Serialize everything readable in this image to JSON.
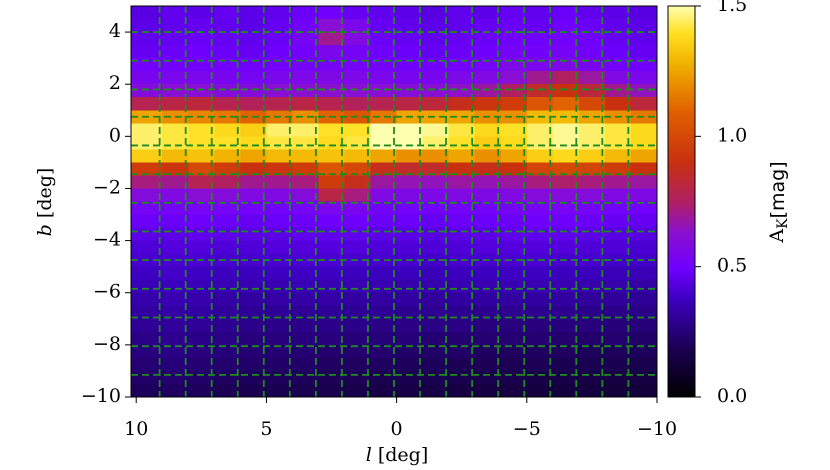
{
  "chart_data": {
    "type": "heatmap",
    "xlabel_var": "l",
    "xlabel_unit": "[deg]",
    "ylabel_var": "b",
    "ylabel_unit": "[deg]",
    "xlim": [
      10.2,
      -10
    ],
    "ylim": [
      -10,
      5
    ],
    "xticks": [
      10,
      5,
      0,
      {
        "value": -5,
        "label": "−5"
      },
      {
        "value": -10,
        "label": "−10"
      }
    ],
    "yticks": [
      4,
      2,
      0,
      {
        "value": -2,
        "label": "−2"
      },
      {
        "value": -4,
        "label": "−4"
      },
      {
        "value": -6,
        "label": "−6"
      },
      {
        "value": -8,
        "label": "−8"
      },
      {
        "value": -10,
        "label": "−10"
      }
    ],
    "colormap": "fire",
    "colorbar": {
      "label_main": "A",
      "label_sub": "K",
      "label_unit": "[mag]",
      "lim": [
        0,
        1.5
      ],
      "ticks": [
        {
          "value": 0,
          "label": "0.0"
        },
        0.5,
        {
          "value": 1,
          "label": "1.0"
        },
        1.5
      ]
    },
    "tile_grid": {
      "color": "#1f8a1f",
      "l": [
        9.1,
        8.1,
        7.1,
        6.1,
        5.1,
        4.1,
        3.1,
        2.1,
        1.1,
        0.1,
        -0.9,
        -1.9,
        -2.9,
        -3.9,
        -4.9,
        -5.9,
        -6.9,
        -7.9,
        -8.9
      ],
      "b": [
        4.0,
        2.9,
        1.8,
        0.75,
        -0.35,
        -1.45,
        -2.55,
        -3.65,
        -4.75,
        -5.85,
        -6.95,
        -8.05,
        -9.15
      ]
    },
    "x": [
      9.5,
      8.5,
      7.5,
      6.5,
      5.5,
      4.5,
      3.5,
      2.5,
      1.5,
      0.5,
      -0.5,
      -1.5,
      -2.5,
      -3.5,
      -4.5,
      -5.5,
      -6.5,
      -7.5,
      -8.5,
      -9.5
    ],
    "y": [
      4.75,
      4.25,
      3.75,
      3.25,
      2.75,
      2.25,
      1.75,
      1.25,
      0.75,
      0.25,
      -0.25,
      -0.75,
      -1.25,
      -1.75,
      -2.25,
      -2.75,
      -3.25,
      -3.75,
      -4.25,
      -4.75,
      -5.25,
      -5.75,
      -6.25,
      -6.75,
      -7.25,
      -7.75,
      -8.25,
      -8.75,
      -9.25,
      -9.75
    ],
    "values": [
      [
        0.44,
        0.46,
        0.45,
        0.47,
        0.45,
        0.46,
        0.48,
        0.5,
        0.47,
        0.46,
        0.45,
        0.44,
        0.46,
        0.45,
        0.47,
        0.46,
        0.48,
        0.46,
        0.45,
        0.44
      ],
      [
        0.45,
        0.46,
        0.47,
        0.46,
        0.45,
        0.47,
        0.5,
        0.62,
        0.55,
        0.47,
        0.46,
        0.45,
        0.46,
        0.47,
        0.48,
        0.47,
        0.49,
        0.48,
        0.46,
        0.45
      ],
      [
        0.46,
        0.47,
        0.48,
        0.47,
        0.46,
        0.48,
        0.52,
        0.7,
        0.58,
        0.48,
        0.47,
        0.46,
        0.47,
        0.48,
        0.5,
        0.49,
        0.5,
        0.49,
        0.47,
        0.46
      ],
      [
        0.47,
        0.48,
        0.49,
        0.48,
        0.47,
        0.49,
        0.5,
        0.55,
        0.52,
        0.49,
        0.48,
        0.47,
        0.48,
        0.49,
        0.52,
        0.51,
        0.52,
        0.5,
        0.48,
        0.47
      ],
      [
        0.5,
        0.5,
        0.51,
        0.5,
        0.49,
        0.51,
        0.52,
        0.53,
        0.52,
        0.51,
        0.5,
        0.5,
        0.51,
        0.52,
        0.56,
        0.55,
        0.57,
        0.54,
        0.51,
        0.5
      ],
      [
        0.54,
        0.55,
        0.55,
        0.54,
        0.53,
        0.55,
        0.56,
        0.57,
        0.56,
        0.55,
        0.54,
        0.54,
        0.56,
        0.58,
        0.62,
        0.7,
        0.75,
        0.68,
        0.58,
        0.55
      ],
      [
        0.6,
        0.62,
        0.62,
        0.6,
        0.6,
        0.62,
        0.63,
        0.63,
        0.62,
        0.62,
        0.61,
        0.62,
        0.64,
        0.68,
        0.75,
        0.85,
        0.9,
        0.82,
        0.7,
        0.65
      ],
      [
        0.78,
        0.8,
        0.82,
        0.78,
        0.76,
        0.78,
        0.8,
        0.78,
        0.76,
        0.78,
        0.8,
        0.82,
        0.88,
        0.92,
        0.95,
        1.05,
        1.1,
        1.0,
        0.9,
        0.82
      ],
      [
        1.25,
        1.2,
        1.18,
        1.15,
        1.1,
        1.15,
        1.2,
        1.1,
        1.05,
        1.15,
        1.25,
        1.25,
        1.25,
        1.2,
        1.2,
        1.3,
        1.3,
        1.25,
        1.2,
        1.15
      ],
      [
        1.45,
        1.42,
        1.4,
        1.38,
        1.35,
        1.45,
        1.45,
        1.4,
        1.4,
        1.5,
        1.5,
        1.48,
        1.42,
        1.38,
        1.4,
        1.45,
        1.48,
        1.45,
        1.42,
        1.38
      ],
      [
        1.45,
        1.42,
        1.4,
        1.4,
        1.38,
        1.42,
        1.42,
        1.38,
        1.42,
        1.5,
        1.5,
        1.45,
        1.4,
        1.35,
        1.38,
        1.45,
        1.48,
        1.45,
        1.42,
        1.38
      ],
      [
        1.35,
        1.3,
        1.32,
        1.28,
        1.25,
        1.3,
        1.3,
        1.32,
        1.3,
        1.25,
        1.2,
        1.2,
        1.25,
        1.2,
        1.25,
        1.35,
        1.38,
        1.35,
        1.3,
        1.25
      ],
      [
        0.95,
        0.92,
        1.0,
        0.95,
        0.9,
        0.92,
        0.95,
        1.05,
        1.0,
        0.88,
        0.85,
        0.85,
        0.9,
        0.88,
        0.9,
        0.98,
        1.0,
        0.98,
        0.95,
        0.9
      ],
      [
        0.72,
        0.7,
        0.78,
        0.75,
        0.7,
        0.7,
        0.72,
        0.95,
        0.88,
        0.68,
        0.66,
        0.65,
        0.68,
        0.66,
        0.68,
        0.72,
        0.74,
        0.72,
        0.7,
        0.68
      ],
      [
        0.6,
        0.58,
        0.62,
        0.6,
        0.58,
        0.58,
        0.6,
        0.8,
        0.72,
        0.58,
        0.57,
        0.56,
        0.58,
        0.57,
        0.58,
        0.6,
        0.6,
        0.6,
        0.58,
        0.57
      ],
      [
        0.52,
        0.52,
        0.53,
        0.52,
        0.51,
        0.51,
        0.52,
        0.55,
        0.54,
        0.51,
        0.51,
        0.5,
        0.51,
        0.51,
        0.52,
        0.52,
        0.53,
        0.52,
        0.51,
        0.5
      ],
      [
        0.48,
        0.48,
        0.49,
        0.48,
        0.47,
        0.48,
        0.48,
        0.49,
        0.49,
        0.48,
        0.48,
        0.47,
        0.48,
        0.48,
        0.48,
        0.49,
        0.49,
        0.48,
        0.47,
        0.47
      ],
      [
        0.45,
        0.45,
        0.46,
        0.45,
        0.45,
        0.45,
        0.46,
        0.46,
        0.46,
        0.45,
        0.45,
        0.44,
        0.45,
        0.45,
        0.46,
        0.46,
        0.46,
        0.45,
        0.44,
        0.44
      ],
      [
        0.42,
        0.43,
        0.43,
        0.42,
        0.42,
        0.43,
        0.43,
        0.43,
        0.43,
        0.42,
        0.42,
        0.42,
        0.42,
        0.43,
        0.43,
        0.43,
        0.43,
        0.42,
        0.42,
        0.41
      ],
      [
        0.4,
        0.41,
        0.41,
        0.4,
        0.4,
        0.4,
        0.41,
        0.41,
        0.4,
        0.4,
        0.4,
        0.39,
        0.4,
        0.4,
        0.41,
        0.41,
        0.4,
        0.4,
        0.39,
        0.39
      ],
      [
        0.38,
        0.39,
        0.38,
        0.37,
        0.37,
        0.38,
        0.38,
        0.38,
        0.37,
        0.37,
        0.37,
        0.36,
        0.37,
        0.37,
        0.38,
        0.38,
        0.37,
        0.37,
        0.36,
        0.36
      ],
      [
        0.36,
        0.37,
        0.36,
        0.35,
        0.35,
        0.35,
        0.36,
        0.35,
        0.35,
        0.35,
        0.34,
        0.34,
        0.35,
        0.35,
        0.35,
        0.35,
        0.35,
        0.34,
        0.34,
        0.33
      ],
      [
        0.34,
        0.35,
        0.34,
        0.33,
        0.32,
        0.33,
        0.33,
        0.33,
        0.32,
        0.32,
        0.32,
        0.31,
        0.32,
        0.32,
        0.32,
        0.32,
        0.32,
        0.31,
        0.31,
        0.3
      ],
      [
        0.32,
        0.33,
        0.32,
        0.31,
        0.3,
        0.3,
        0.3,
        0.3,
        0.3,
        0.3,
        0.29,
        0.29,
        0.29,
        0.29,
        0.29,
        0.29,
        0.29,
        0.28,
        0.28,
        0.28
      ],
      [
        0.3,
        0.31,
        0.3,
        0.29,
        0.28,
        0.28,
        0.28,
        0.28,
        0.28,
        0.27,
        0.27,
        0.27,
        0.27,
        0.26,
        0.26,
        0.26,
        0.26,
        0.26,
        0.25,
        0.25
      ],
      [
        0.28,
        0.29,
        0.28,
        0.27,
        0.26,
        0.26,
        0.26,
        0.26,
        0.25,
        0.25,
        0.25,
        0.24,
        0.24,
        0.24,
        0.24,
        0.24,
        0.23,
        0.23,
        0.23,
        0.22
      ],
      [
        0.26,
        0.27,
        0.26,
        0.25,
        0.24,
        0.24,
        0.24,
        0.23,
        0.23,
        0.23,
        0.22,
        0.22,
        0.22,
        0.21,
        0.21,
        0.21,
        0.21,
        0.2,
        0.2,
        0.2
      ],
      [
        0.24,
        0.25,
        0.24,
        0.23,
        0.22,
        0.22,
        0.22,
        0.21,
        0.21,
        0.21,
        0.2,
        0.2,
        0.19,
        0.19,
        0.19,
        0.19,
        0.18,
        0.18,
        0.18,
        0.17
      ],
      [
        0.22,
        0.23,
        0.22,
        0.21,
        0.2,
        0.2,
        0.2,
        0.19,
        0.19,
        0.18,
        0.18,
        0.18,
        0.17,
        0.17,
        0.17,
        0.16,
        0.16,
        0.16,
        0.15,
        0.15
      ],
      [
        0.2,
        0.21,
        0.2,
        0.19,
        0.18,
        0.18,
        0.18,
        0.17,
        0.17,
        0.16,
        0.16,
        0.16,
        0.15,
        0.15,
        0.15,
        0.14,
        0.14,
        0.14,
        0.13,
        0.13
      ]
    ]
  }
}
